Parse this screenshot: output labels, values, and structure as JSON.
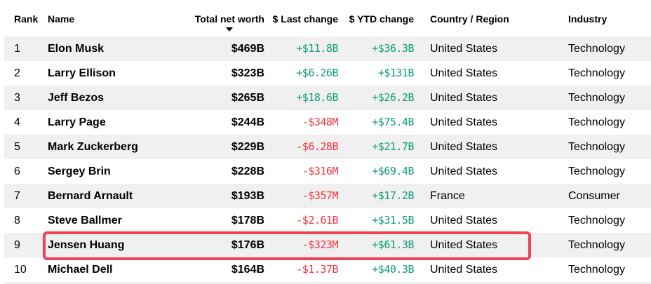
{
  "table": {
    "columns": [
      {
        "key": "rank",
        "label": "Rank"
      },
      {
        "key": "name",
        "label": "Name"
      },
      {
        "key": "net_worth",
        "label": "Total net worth",
        "sort": "desc"
      },
      {
        "key": "last_change",
        "label": "$ Last change"
      },
      {
        "key": "ytd_change",
        "label": "$ YTD change"
      },
      {
        "key": "country",
        "label": "Country / Region"
      },
      {
        "key": "industry",
        "label": "Industry"
      }
    ],
    "rows": [
      {
        "rank": "1",
        "name": "Elon Musk",
        "net_worth": "$469B",
        "last_change": "+$11.8B",
        "ytd_change": "+$36.3B",
        "country": "United States",
        "industry": "Technology"
      },
      {
        "rank": "2",
        "name": "Larry Ellison",
        "net_worth": "$323B",
        "last_change": "+$6.26B",
        "ytd_change": "+$131B",
        "country": "United States",
        "industry": "Technology"
      },
      {
        "rank": "3",
        "name": "Jeff Bezos",
        "net_worth": "$265B",
        "last_change": "+$18.6B",
        "ytd_change": "+$26.2B",
        "country": "United States",
        "industry": "Technology"
      },
      {
        "rank": "4",
        "name": "Larry Page",
        "net_worth": "$244B",
        "last_change": "-$348M",
        "ytd_change": "+$75.4B",
        "country": "United States",
        "industry": "Technology"
      },
      {
        "rank": "5",
        "name": "Mark Zuckerberg",
        "net_worth": "$229B",
        "last_change": "-$6.28B",
        "ytd_change": "+$21.7B",
        "country": "United States",
        "industry": "Technology"
      },
      {
        "rank": "6",
        "name": "Sergey Brin",
        "net_worth": "$228B",
        "last_change": "-$316M",
        "ytd_change": "+$69.4B",
        "country": "United States",
        "industry": "Technology"
      },
      {
        "rank": "7",
        "name": "Bernard Arnault",
        "net_worth": "$193B",
        "last_change": "-$357M",
        "ytd_change": "+$17.2B",
        "country": "France",
        "industry": "Consumer"
      },
      {
        "rank": "8",
        "name": "Steve Ballmer",
        "net_worth": "$178B",
        "last_change": "-$2.61B",
        "ytd_change": "+$31.5B",
        "country": "United States",
        "industry": "Technology"
      },
      {
        "rank": "9",
        "name": "Jensen Huang",
        "net_worth": "$176B",
        "last_change": "-$323M",
        "ytd_change": "+$61.3B",
        "country": "United States",
        "industry": "Technology"
      },
      {
        "rank": "10",
        "name": "Michael Dell",
        "net_worth": "$164B",
        "last_change": "-$1.37B",
        "ytd_change": "+$40.3B",
        "country": "United States",
        "industry": "Technology"
      }
    ],
    "highlight": {
      "rank": "9"
    }
  },
  "colors": {
    "positive": "#0d9e76",
    "negative": "#f9323e",
    "highlight_box": "#f24156",
    "row_alt": "#f0f0f0"
  }
}
